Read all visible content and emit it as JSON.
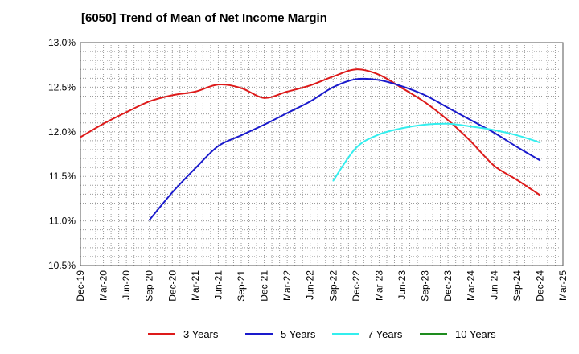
{
  "title": "[6050]  Trend of Mean of Net Income Margin",
  "chart_data": {
    "type": "line",
    "title": "[6050]  Trend of Mean of Net Income Margin",
    "xlabel": "",
    "ylabel": "",
    "ylim": [
      10.5,
      13.0
    ],
    "y_ticks": [
      "13.0%",
      "12.5%",
      "12.0%",
      "11.5%",
      "11.0%",
      "10.5%"
    ],
    "y_tick_values": [
      13.0,
      12.5,
      12.0,
      11.5,
      11.0,
      10.5
    ],
    "x_ticks": [
      "Dec-19",
      "Mar-20",
      "Jun-20",
      "Sep-20",
      "Dec-20",
      "Mar-21",
      "Jun-21",
      "Sep-21",
      "Dec-21",
      "Mar-22",
      "Jun-22",
      "Sep-22",
      "Dec-22",
      "Mar-23",
      "Jun-23",
      "Sep-23",
      "Dec-23",
      "Mar-24",
      "Jun-24",
      "Sep-24",
      "Dec-24",
      "Mar-25"
    ],
    "grid": true,
    "legend_position": "bottom",
    "series": [
      {
        "name": "3 Years",
        "color": "#dd1a1a",
        "values": [
          [
            "Dec-19",
            11.94
          ],
          [
            "Mar-20",
            12.09
          ],
          [
            "Jun-20",
            12.22
          ],
          [
            "Sep-20",
            12.34
          ],
          [
            "Dec-20",
            12.41
          ],
          [
            "Mar-21",
            12.45
          ],
          [
            "Jun-21",
            12.53
          ],
          [
            "Sep-21",
            12.49
          ],
          [
            "Dec-21",
            12.38
          ],
          [
            "Mar-22",
            12.45
          ],
          [
            "Jun-22",
            12.52
          ],
          [
            "Sep-22",
            12.62
          ],
          [
            "Dec-22",
            12.7
          ],
          [
            "Mar-23",
            12.64
          ],
          [
            "Jun-23",
            12.49
          ],
          [
            "Sep-23",
            12.33
          ],
          [
            "Dec-23",
            12.13
          ],
          [
            "Mar-24",
            11.89
          ],
          [
            "Jun-24",
            11.62
          ],
          [
            "Sep-24",
            11.46
          ],
          [
            "Dec-24",
            11.29
          ]
        ]
      },
      {
        "name": "5 Years",
        "color": "#1a1acc",
        "values": [
          [
            "Sep-20",
            11.01
          ],
          [
            "Dec-20",
            11.32
          ],
          [
            "Mar-21",
            11.59
          ],
          [
            "Jun-21",
            11.84
          ],
          [
            "Sep-21",
            11.96
          ],
          [
            "Dec-21",
            12.08
          ],
          [
            "Mar-22",
            12.21
          ],
          [
            "Jun-22",
            12.34
          ],
          [
            "Sep-22",
            12.5
          ],
          [
            "Dec-22",
            12.59
          ],
          [
            "Mar-23",
            12.58
          ],
          [
            "Jun-23",
            12.51
          ],
          [
            "Sep-23",
            12.41
          ],
          [
            "Dec-23",
            12.27
          ],
          [
            "Mar-24",
            12.13
          ],
          [
            "Jun-24",
            11.99
          ],
          [
            "Sep-24",
            11.83
          ],
          [
            "Dec-24",
            11.68
          ]
        ]
      },
      {
        "name": "7 Years",
        "color": "#33eeee",
        "values": [
          [
            "Sep-22",
            11.45
          ],
          [
            "Dec-22",
            11.82
          ],
          [
            "Mar-23",
            11.97
          ],
          [
            "Jun-23",
            12.04
          ],
          [
            "Sep-23",
            12.08
          ],
          [
            "Dec-23",
            12.09
          ],
          [
            "Mar-24",
            12.06
          ],
          [
            "Jun-24",
            12.02
          ],
          [
            "Sep-24",
            11.96
          ],
          [
            "Dec-24",
            11.88
          ]
        ]
      },
      {
        "name": "10 Years",
        "color": "#1e8c1e",
        "values": []
      }
    ]
  }
}
